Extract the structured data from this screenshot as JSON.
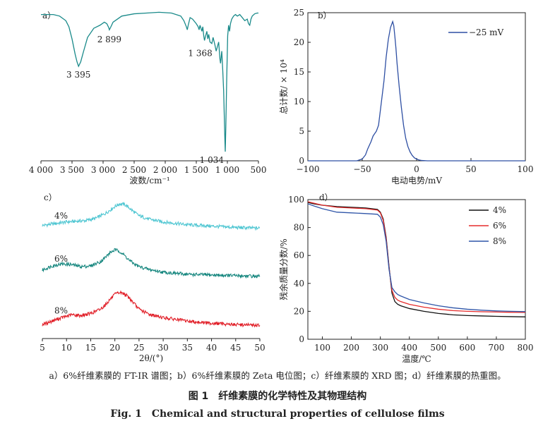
{
  "chart_data": [
    {
      "panel_label": "a）",
      "type": "line",
      "xlabel": "波数/cm⁻¹",
      "ylabel": "",
      "xlim": [
        4000,
        500
      ],
      "x_reversed": true,
      "x_ticks": [
        4000,
        3500,
        3000,
        2500,
        2000,
        1500,
        1000,
        500
      ],
      "x_tick_labels": [
        "4 000",
        "3 500",
        "3 000",
        "2 500",
        "2 000",
        "1 500",
        "1 000",
        "500"
      ],
      "ylim": [
        0,
        100
      ],
      "y_ticks_shown": false,
      "color": "#1a8a8a",
      "series": [
        {
          "name": "",
          "x": [
            4000,
            3800,
            3700,
            3600,
            3550,
            3500,
            3450,
            3420,
            3395,
            3360,
            3320,
            3250,
            3150,
            3050,
            2980,
            2940,
            2910,
            2899,
            2880,
            2840,
            2700,
            2500,
            2300,
            2100,
            1900,
            1750,
            1700,
            1660,
            1645,
            1630,
            1600,
            1560,
            1500,
            1470,
            1455,
            1440,
            1425,
            1410,
            1395,
            1380,
            1368,
            1350,
            1330,
            1315,
            1300,
            1280,
            1250,
            1230,
            1200,
            1180,
            1160,
            1140,
            1120,
            1110,
            1100,
            1090,
            1075,
            1060,
            1050,
            1040,
            1034,
            1025,
            1010,
            995,
            980,
            965,
            950,
            930,
            900,
            870,
            840,
            800,
            760,
            720,
            680,
            660,
            640,
            620,
            600,
            560,
            520,
            500
          ],
          "y": [
            96,
            96,
            95,
            92,
            88,
            80,
            70,
            65,
            62,
            65,
            71,
            81,
            87,
            89,
            91,
            90,
            87.5,
            86,
            87.5,
            91,
            95,
            96.5,
            97,
            97.5,
            97,
            95,
            92,
            88,
            86,
            89,
            94,
            93,
            90,
            88,
            86,
            89,
            87,
            85,
            88,
            82,
            79,
            82,
            85,
            80,
            83,
            78,
            77,
            81,
            76,
            72,
            75,
            78,
            67,
            64,
            68,
            72,
            60,
            46,
            30,
            14,
            6,
            22,
            55,
            82,
            89,
            85,
            90,
            93,
            95,
            96,
            95,
            96,
            94,
            92,
            93,
            90,
            89,
            93,
            95,
            96.5,
            97,
            97
          ]
        }
      ],
      "annotations": [
        {
          "text": "3 395",
          "x": 3395,
          "y": 62
        },
        {
          "text": "2 899",
          "x": 2899,
          "y": 86
        },
        {
          "text": "1 368",
          "x": 1368,
          "y": 79
        },
        {
          "text": "1 034",
          "x": 1034,
          "y": 6
        }
      ]
    },
    {
      "panel_label": "b）",
      "type": "line",
      "xlabel": "电动电势/mV",
      "ylabel": "总计数/ × 10⁴",
      "xlim": [
        -100,
        100
      ],
      "ylim": [
        0,
        25
      ],
      "x_ticks": [
        -100,
        -50,
        0,
        50,
        100
      ],
      "x_tick_labels": [
        "−100",
        "−50",
        "0",
        "50",
        "100"
      ],
      "y_ticks": [
        0,
        5,
        10,
        15,
        20,
        25
      ],
      "legend_position": "top-right",
      "series": [
        {
          "name": "−25 mV",
          "color": "#2e4fa3",
          "x": [
            -100,
            -55,
            -50,
            -47,
            -45,
            -42,
            -40,
            -37,
            -35,
            -33,
            -30,
            -28,
            -26,
            -24,
            -22,
            -21,
            -20,
            -19,
            -18,
            -16,
            -14,
            -12,
            -10,
            -8,
            -6,
            -4,
            -2,
            0,
            2,
            5,
            10,
            30,
            60,
            100
          ],
          "y": [
            0,
            0,
            0.3,
            1,
            2,
            3.2,
            4.2,
            5,
            6,
            9,
            13.5,
            17.5,
            20.5,
            22.5,
            23.5,
            22.8,
            21,
            19,
            16.5,
            12.5,
            9,
            6,
            3.8,
            2.4,
            1.5,
            0.9,
            0.5,
            0.3,
            0.15,
            0.05,
            0,
            0,
            0,
            0
          ]
        }
      ]
    },
    {
      "panel_label": "c）",
      "type": "line",
      "xlabel": "2θ/(°)",
      "ylabel": "",
      "xlim": [
        5,
        50
      ],
      "ylim": [
        0,
        100
      ],
      "x_ticks": [
        5,
        10,
        15,
        20,
        25,
        30,
        35,
        40,
        45,
        50
      ],
      "y_ticks_shown": false,
      "series": [
        {
          "name": "4%",
          "color": "#4fc6d2",
          "x": [
            5,
            8,
            10,
            12,
            14,
            16,
            18,
            19,
            20,
            21,
            22,
            23,
            24,
            25,
            27,
            30,
            35,
            40,
            45,
            50
          ],
          "y": [
            81,
            82.5,
            83.5,
            84,
            84.5,
            86,
            89.5,
            92,
            94.5,
            96.5,
            96,
            93.5,
            90.5,
            88,
            85.5,
            83.5,
            81.5,
            80.5,
            79.5,
            79
          ]
        },
        {
          "name": "6%",
          "color": "#15867e",
          "x": [
            5,
            7,
            9,
            11,
            13,
            15,
            17,
            18,
            19,
            20,
            21,
            22,
            23,
            24,
            25,
            27,
            30,
            35,
            40,
            45,
            50
          ],
          "y": [
            49,
            52,
            53.5,
            53,
            51.5,
            52,
            55,
            58,
            61.5,
            63.5,
            62.5,
            59.5,
            56,
            53.5,
            51.5,
            49.5,
            47.5,
            46,
            45.5,
            45,
            44.5
          ]
        },
        {
          "name": "8%",
          "color": "#e11f28",
          "x": [
            5,
            7,
            9,
            11,
            13,
            15,
            17,
            18,
            19,
            20,
            21,
            22,
            23,
            24,
            25,
            27,
            30,
            35,
            40,
            45,
            50
          ],
          "y": [
            10,
            12.5,
            15,
            17,
            16.5,
            18,
            21,
            24,
            28,
            31.5,
            33,
            32,
            29,
            25,
            21,
            17.5,
            15,
            12.5,
            11,
            10,
            9.5
          ]
        }
      ],
      "annotations": [
        {
          "text": "4%",
          "x": 8,
          "y": 88
        },
        {
          "text": "6%",
          "x": 8,
          "y": 57
        },
        {
          "text": "8%",
          "x": 8,
          "y": 20
        }
      ]
    },
    {
      "panel_label": "d）",
      "type": "line",
      "xlabel": "温度/℃",
      "ylabel": "残余质量分数/%",
      "xlim": [
        50,
        800
      ],
      "ylim": [
        0,
        100
      ],
      "x_ticks": [
        100,
        200,
        300,
        400,
        500,
        600,
        700,
        800
      ],
      "y_ticks": [
        0,
        20,
        40,
        60,
        80,
        100
      ],
      "legend_position": "top-right",
      "series": [
        {
          "name": "4%",
          "color": "#111111",
          "x": [
            50,
            70,
            100,
            150,
            200,
            250,
            290,
            300,
            310,
            320,
            330,
            340,
            350,
            360,
            370,
            400,
            450,
            500,
            550,
            600,
            650,
            700,
            750,
            800
          ],
          "y": [
            98,
            97,
            96,
            95,
            94.5,
            94,
            93,
            91,
            86,
            73,
            52,
            33,
            27,
            25,
            24,
            22,
            20,
            18.5,
            17.5,
            17,
            16.7,
            16.4,
            16.2,
            16
          ]
        },
        {
          "name": "6%",
          "color": "#e52b2b",
          "x": [
            50,
            70,
            100,
            150,
            200,
            250,
            290,
            300,
            310,
            320,
            330,
            340,
            350,
            360,
            370,
            400,
            450,
            500,
            550,
            600,
            650,
            700,
            750,
            800
          ],
          "y": [
            98.5,
            97.5,
            96,
            94.5,
            94,
            93.5,
            92.5,
            90.5,
            85,
            72,
            51,
            35,
            30,
            28,
            27,
            25,
            23,
            21.5,
            20.5,
            20,
            19.7,
            19.5,
            19.3,
            19.2
          ]
        },
        {
          "name": "8%",
          "color": "#2f55a8",
          "x": [
            50,
            70,
            100,
            150,
            200,
            250,
            290,
            300,
            310,
            320,
            330,
            340,
            350,
            360,
            370,
            400,
            450,
            500,
            550,
            600,
            650,
            700,
            750,
            800
          ],
          "y": [
            97,
            95.5,
            93.5,
            91,
            90.5,
            90,
            89.5,
            87.5,
            82,
            70,
            50,
            37,
            34,
            32,
            31,
            28.5,
            26,
            24,
            22.5,
            21.5,
            20.8,
            20.3,
            20,
            19.8
          ]
        }
      ]
    }
  ],
  "captions": {
    "subcaption": "a）6%纤维素膜的 FT-IR 谱图；b）6%纤维素膜的 Zeta 电位图；c）纤维素膜的 XRD 图；d）纤维素膜的热重图。",
    "title_cn": "图 1　纤维素膜的化学特性及其物理结构",
    "title_en": "Fig. 1　Chemical and structural properties of cellulose films"
  }
}
